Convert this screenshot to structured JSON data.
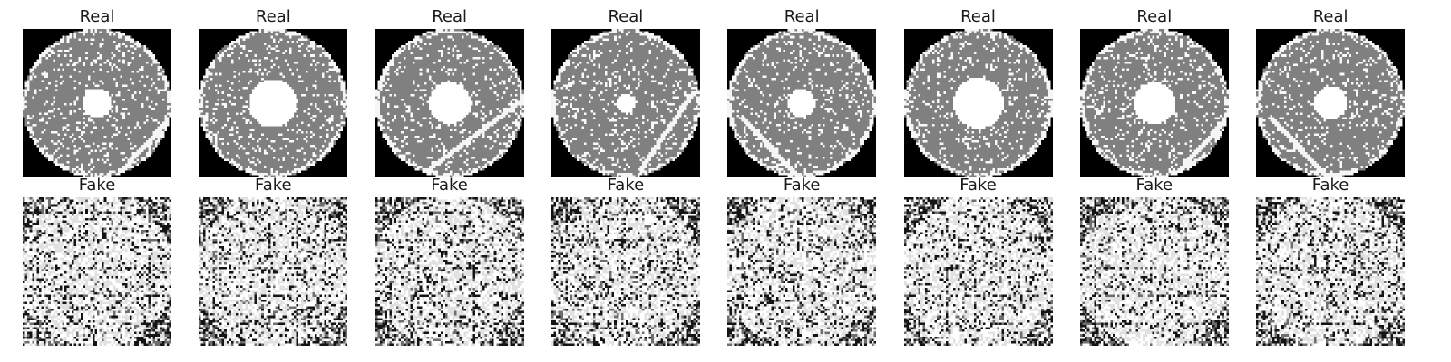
{
  "figure": {
    "background": "#ffffff",
    "title_color": "#1a1a1a",
    "colormap": "gray",
    "image_resolution": 64
  },
  "rows": [
    {
      "kind": "real",
      "panels": [
        {
          "title": "Real",
          "center_spot": 0.1,
          "scratch": "right-low"
        },
        {
          "title": "Real",
          "center_spot": 0.16,
          "scratch": "none"
        },
        {
          "title": "Real",
          "center_spot": 0.14,
          "scratch": "right-mid"
        },
        {
          "title": "Real",
          "center_spot": 0.06,
          "scratch": "right-high"
        },
        {
          "title": "Real",
          "center_spot": 0.09,
          "scratch": "left-low"
        },
        {
          "title": "Real",
          "center_spot": 0.17,
          "scratch": "none"
        },
        {
          "title": "Real",
          "center_spot": 0.14,
          "scratch": "right-low"
        },
        {
          "title": "Real",
          "center_spot": 0.11,
          "scratch": "left-low"
        }
      ]
    },
    {
      "kind": "fake",
      "panels": [
        {
          "title": "Fake"
        },
        {
          "title": "Fake"
        },
        {
          "title": "Fake"
        },
        {
          "title": "Fake"
        },
        {
          "title": "Fake"
        },
        {
          "title": "Fake"
        },
        {
          "title": "Fake"
        },
        {
          "title": "Fake"
        }
      ]
    }
  ]
}
